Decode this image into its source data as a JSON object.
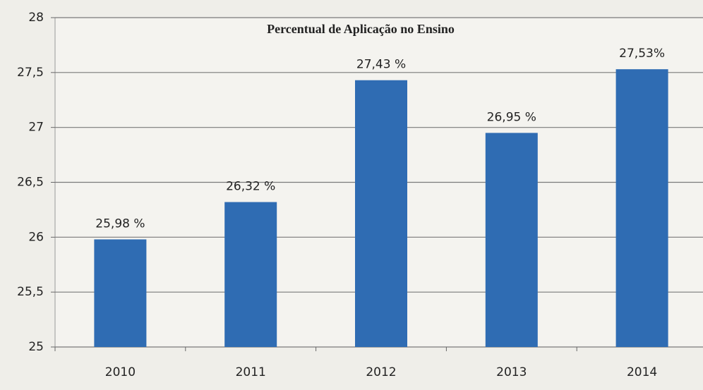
{
  "chart_data": {
    "type": "bar",
    "title": "Percentual de Aplicação no Ensino",
    "categories": [
      "2010",
      "2011",
      "2012",
      "2013",
      "2014"
    ],
    "values": [
      25.98,
      26.32,
      27.43,
      26.95,
      27.53
    ],
    "value_labels": [
      "25,98 %",
      "26,32 %",
      "27,43 %",
      "26,95 %",
      "27,53%"
    ],
    "color": "#2f6cb3",
    "ylim": [
      25,
      28
    ],
    "yticks": [
      25,
      {
        "value": 25.5,
        "label": "25,5"
      },
      26,
      {
        "value": 26.5,
        "label": "26,5"
      },
      27,
      {
        "value": 27.5,
        "label": "27,5"
      },
      28
    ],
    "grid": true
  }
}
